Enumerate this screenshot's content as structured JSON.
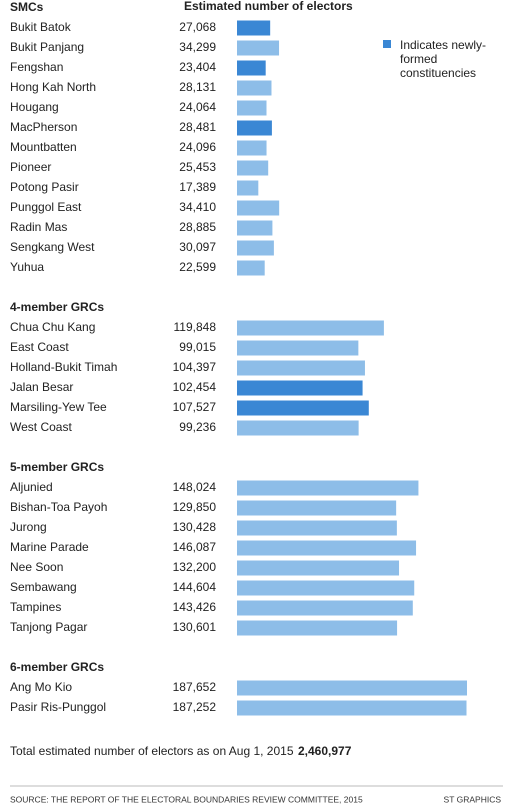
{
  "chart_data": {
    "type": "bar",
    "value_header": "Estimated number of electors",
    "legend": "Indicates newly-formed constituencies",
    "colors": {
      "new": "#3a87d4",
      "existing": "#8dbde8"
    },
    "groups": [
      {
        "name": "SMCs",
        "categories": [
          "Bukit Batok",
          "Bukit Panjang",
          "Fengshan",
          "Hong Kah North",
          "Hougang",
          "MacPherson",
          "Mountbatten",
          "Pioneer",
          "Potong Pasir",
          "Punggol East",
          "Radin Mas",
          "Sengkang West",
          "Yuhua"
        ],
        "values": [
          27068,
          34299,
          23404,
          28131,
          24064,
          28481,
          24096,
          25453,
          17389,
          34410,
          28885,
          30097,
          22599
        ],
        "value_labels": [
          "27,068",
          "34,299",
          "23,404",
          "28,131",
          "24,064",
          "28,481",
          "24,096",
          "25,453",
          "17,389",
          "34,410",
          "28,885",
          "30,097",
          "22,599"
        ],
        "new": [
          true,
          false,
          true,
          false,
          false,
          true,
          false,
          false,
          false,
          false,
          false,
          false,
          false
        ]
      },
      {
        "name": "4-member GRCs",
        "categories": [
          "Chua Chu Kang",
          "East Coast",
          "Holland-Bukit Timah",
          "Jalan Besar",
          "Marsiling-Yew Tee",
          "West Coast"
        ],
        "values": [
          119848,
          99015,
          104397,
          102454,
          107527,
          99236
        ],
        "value_labels": [
          "119,848",
          "99,015",
          "104,397",
          "102,454",
          "107,527",
          "99,236"
        ],
        "new": [
          false,
          false,
          false,
          true,
          true,
          false
        ]
      },
      {
        "name": "5-member GRCs",
        "categories": [
          "Aljunied",
          "Bishan-Toa Payoh",
          "Jurong",
          "Marine Parade",
          "Nee Soon",
          "Sembawang",
          "Tampines",
          "Tanjong Pagar"
        ],
        "values": [
          148024,
          129850,
          130428,
          146087,
          132200,
          144604,
          143426,
          130601
        ],
        "value_labels": [
          "148,024",
          "129,850",
          "130,428",
          "146,087",
          "132,200",
          "144,604",
          "143,426",
          "130,601"
        ],
        "new": [
          false,
          false,
          false,
          false,
          false,
          false,
          false,
          false
        ]
      },
      {
        "name": "6-member GRCs",
        "categories": [
          "Ang Mo Kio",
          "Pasir Ris-Punggol"
        ],
        "values": [
          187652,
          187252
        ],
        "value_labels": [
          "187,652",
          "187,252"
        ],
        "new": [
          false,
          false
        ]
      }
    ]
  },
  "footer": {
    "total_label": "Total estimated number of electors as on Aug 1, 2015",
    "total": "2,460,977",
    "source": "SOURCE: THE REPORT OF THE ELECTORAL BOUNDARIES REVIEW COMMITTEE, 2015",
    "credit": "ST GRAPHICS"
  }
}
